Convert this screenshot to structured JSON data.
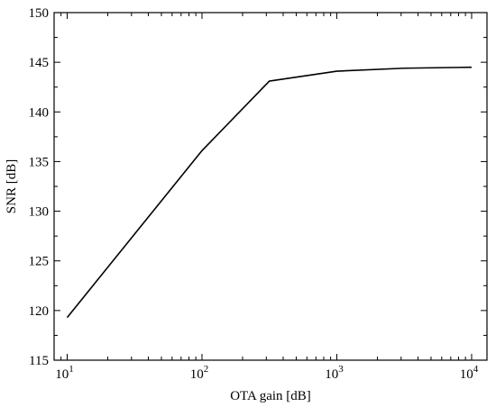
{
  "chart_data": {
    "type": "line",
    "title": "",
    "xlabel": "OTA gain [dB]",
    "ylabel": "SNR [dB]",
    "xscale": "log",
    "xlim": [
      8,
      13000
    ],
    "ylim": [
      115,
      150
    ],
    "x_ticks": [
      {
        "value": 10,
        "base": "10",
        "exponent": "1"
      },
      {
        "value": 100,
        "base": "10",
        "exponent": "2"
      },
      {
        "value": 1000,
        "base": "10",
        "exponent": "3"
      },
      {
        "value": 10000,
        "base": "10",
        "exponent": "4"
      }
    ],
    "y_ticks": [
      "115",
      "120",
      "125",
      "130",
      "135",
      "140",
      "145",
      "150"
    ],
    "grid": false,
    "legend": "none",
    "series": [
      {
        "color": "#000000",
        "points": [
          {
            "x": 10,
            "y": 119.3
          },
          {
            "x": 100,
            "y": 136.1
          },
          {
            "x": 316,
            "y": 143.1
          },
          {
            "x": 1000,
            "y": 144.1
          },
          {
            "x": 3162,
            "y": 144.4
          },
          {
            "x": 10000,
            "y": 144.5
          }
        ]
      }
    ]
  }
}
